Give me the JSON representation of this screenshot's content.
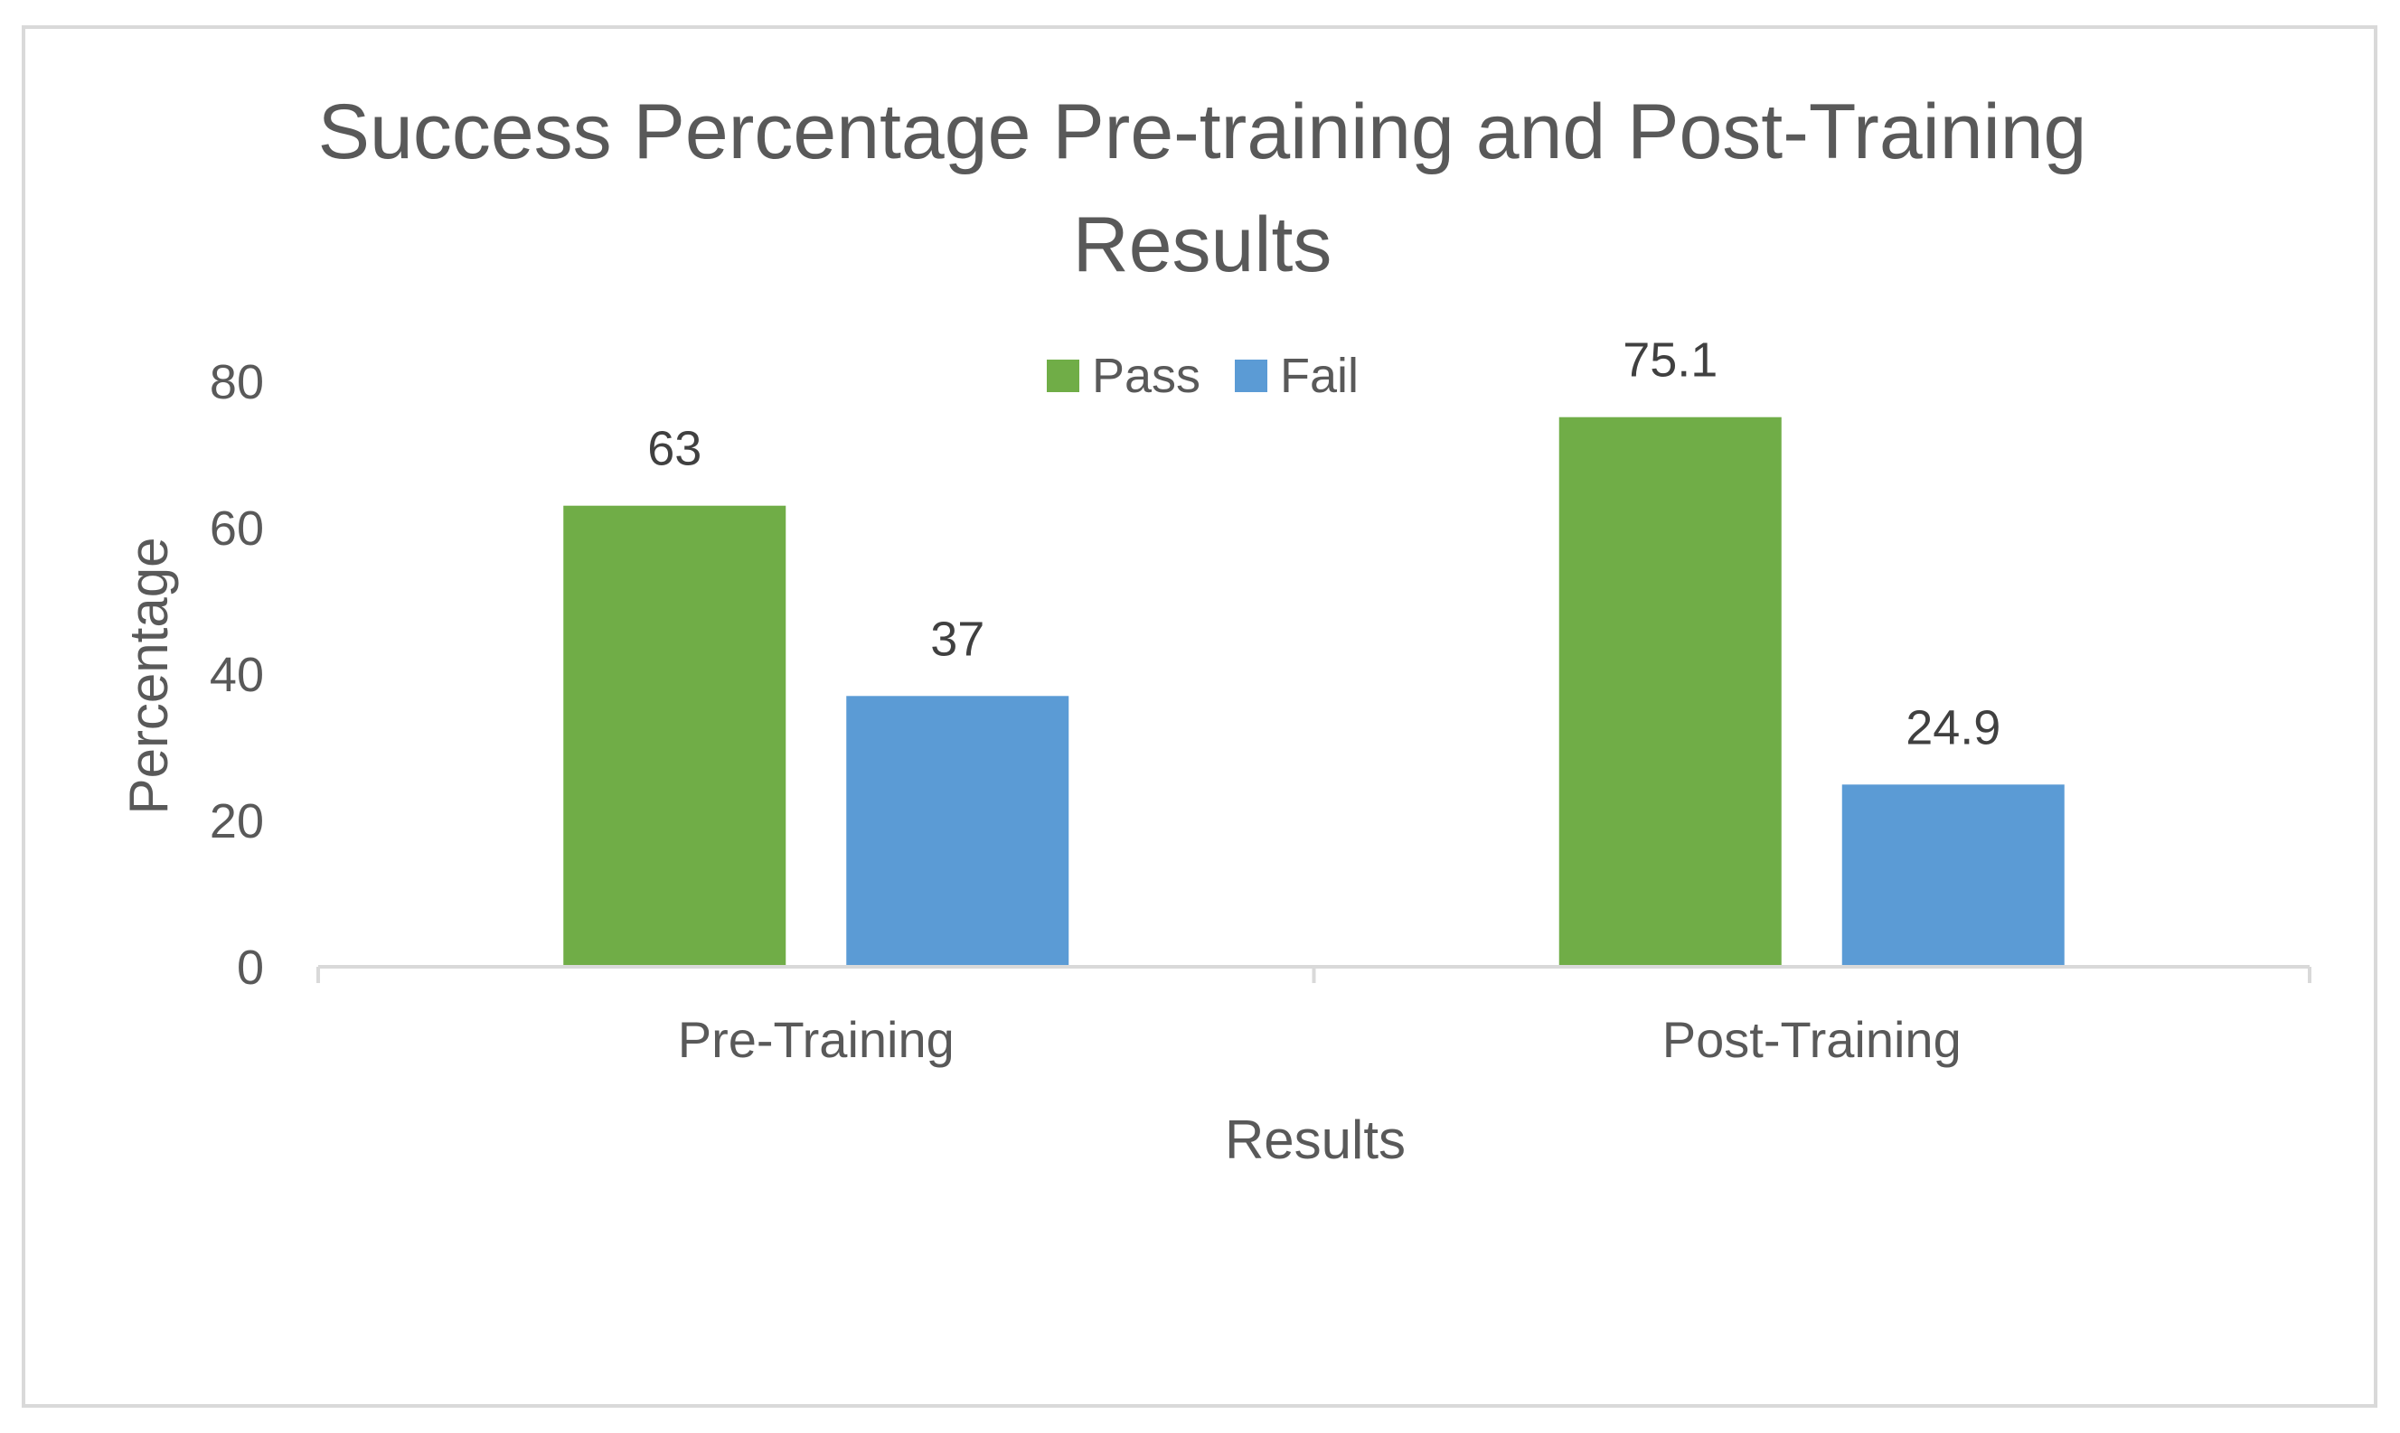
{
  "chart_data": {
    "type": "bar",
    "title": "Success Percentage Pre-training and Post-Training Results",
    "categories": [
      "Pre-Training",
      "Post-Training"
    ],
    "series": [
      {
        "name": "Pass",
        "values": [
          63,
          75.1
        ],
        "color": "#70ad47"
      },
      {
        "name": "Fail",
        "values": [
          37,
          24.9
        ],
        "color": "#5b9bd5"
      }
    ],
    "xlabel": "Results",
    "ylabel": "Percentage",
    "ylim": [
      0,
      80
    ],
    "yticks": [
      0,
      20,
      40,
      60,
      80
    ],
    "grid": false,
    "legend_position": "top",
    "data_labels": true
  }
}
